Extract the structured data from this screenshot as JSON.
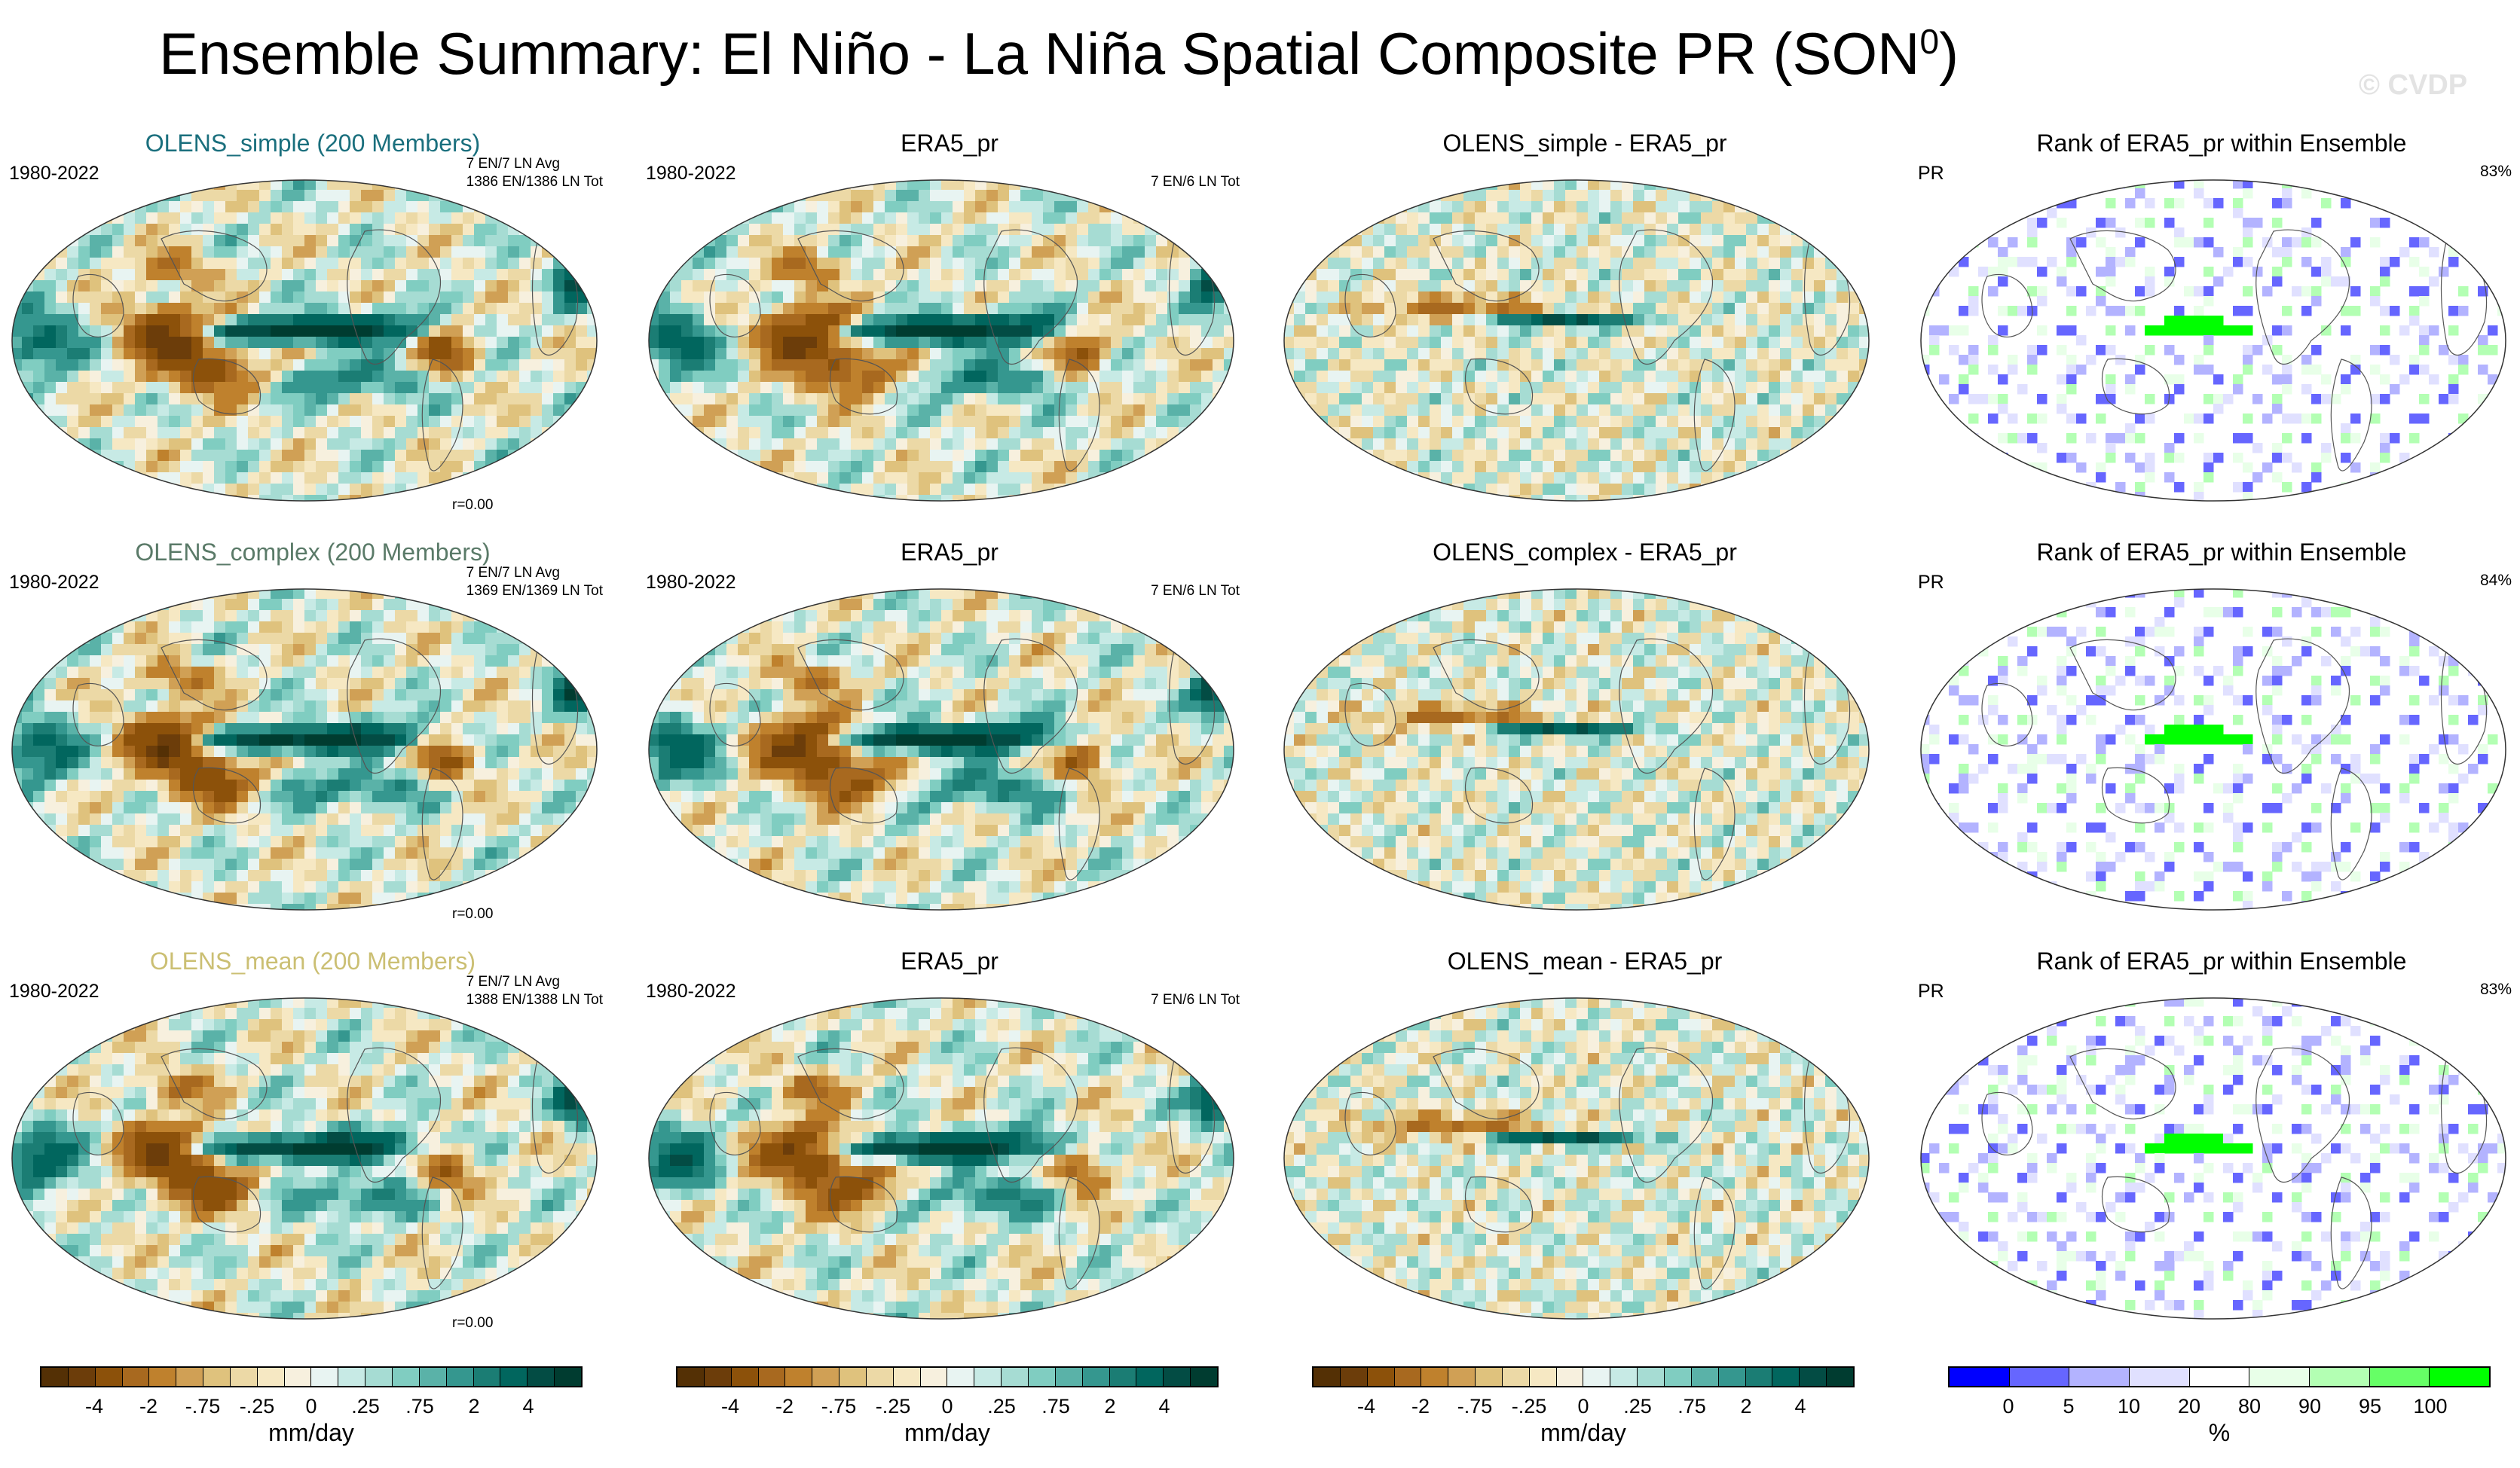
{
  "figure": {
    "title_main": "Ensemble Summary: El Niño - La Niña Spatial Composite PR (SON",
    "title_sup": "0",
    "title_close": ")",
    "copyright": "© CVDP"
  },
  "colors": {
    "brbg": [
      "#543005",
      "#6c3d0a",
      "#8c510a",
      "#a8691f",
      "#bf812d",
      "#d0a055",
      "#dfc27d",
      "#ecd9a6",
      "#f6e8c3",
      "#f7f0de",
      "#e8f4f2",
      "#c7eae5",
      "#a6dcd3",
      "#80cdc1",
      "#5ab2a8",
      "#35978f",
      "#1b7d74",
      "#01665e",
      "#034c44",
      "#003c30"
    ],
    "rank": [
      "#0000ff",
      "#6666ff",
      "#b3b3ff",
      "#e0e0ff",
      "#ffffff",
      "#e8ffe8",
      "#b3ffb3",
      "#66ff66",
      "#00ff00"
    ],
    "title_simple": "#1a6f7d",
    "title_complex": "#5a7a68",
    "title_mean": "#cbbf73"
  },
  "rows": [
    {
      "ens": {
        "title": "OLENS_simple (200 Members)",
        "years": "1980-2022",
        "info1": "7 EN/7 LN Avg",
        "info2": "1386 EN/1386 LN Tot",
        "r": "r=0.00"
      },
      "obs": {
        "title": "ERA5_pr",
        "years": "1980-2022",
        "info": "7 EN/6 LN Tot"
      },
      "diff": {
        "title": "OLENS_simple - ERA5_pr"
      },
      "rank": {
        "title": "Rank of ERA5_pr within Ensemble",
        "label": "PR",
        "pct": "83%"
      }
    },
    {
      "ens": {
        "title": "OLENS_complex (200 Members)",
        "years": "1980-2022",
        "info1": "7 EN/7 LN Avg",
        "info2": "1369 EN/1369 LN Tot",
        "r": "r=0.00"
      },
      "obs": {
        "title": "ERA5_pr",
        "years": "1980-2022",
        "info": "7 EN/6 LN Tot"
      },
      "diff": {
        "title": "OLENS_complex - ERA5_pr"
      },
      "rank": {
        "title": "Rank of ERA5_pr within Ensemble",
        "label": "PR",
        "pct": "84%"
      }
    },
    {
      "ens": {
        "title": "OLENS_mean (200 Members)",
        "years": "1980-2022",
        "info1": "7 EN/7 LN Avg",
        "info2": "1388 EN/1388 LN Tot",
        "r": "r=0.00"
      },
      "obs": {
        "title": "ERA5_pr",
        "years": "1980-2022",
        "info": "7 EN/6 LN Tot"
      },
      "diff": {
        "title": "OLENS_mean - ERA5_pr"
      },
      "rank": {
        "title": "Rank of ERA5_pr within Ensemble",
        "label": "PR",
        "pct": "83%"
      }
    }
  ],
  "chart_data": [
    {
      "type": "heatmap",
      "name": "precip-composite-colorbar",
      "unit": "mm/day",
      "tick_labels": [
        "-4",
        "-2",
        "-.75",
        "-.25",
        "0",
        ".25",
        ".75",
        "2",
        "4"
      ],
      "tick_values": [
        -4,
        -2,
        -0.75,
        -0.25,
        0,
        0.25,
        0.75,
        2,
        4
      ],
      "levels": [
        -5,
        -4,
        -3,
        -2,
        -1.5,
        -1,
        -0.75,
        -0.5,
        -0.25,
        -0.1,
        0,
        0.1,
        0.25,
        0.5,
        0.75,
        1,
        1.5,
        2,
        3,
        4,
        5
      ]
    },
    {
      "type": "heatmap",
      "name": "rank-colorbar",
      "unit": "%",
      "tick_labels": [
        "0",
        "5",
        "10",
        "20",
        "80",
        "90",
        "95",
        "100"
      ],
      "tick_values": [
        0,
        5,
        10,
        20,
        80,
        90,
        95,
        100
      ],
      "levels": [
        0,
        5,
        10,
        20,
        80,
        90,
        95,
        100
      ]
    }
  ],
  "colorbars": [
    {
      "unit": "mm/day",
      "ticks": [
        "-4",
        "-2",
        "-.75",
        "-.25",
        "0",
        ".25",
        ".75",
        "2",
        "4"
      ]
    },
    {
      "unit": "mm/day",
      "ticks": [
        "-4",
        "-2",
        "-.75",
        "-.25",
        "0",
        ".25",
        ".75",
        "2",
        "4"
      ]
    },
    {
      "unit": "mm/day",
      "ticks": [
        "-4",
        "-2",
        "-.75",
        "-.25",
        "0",
        ".25",
        ".75",
        "2",
        "4"
      ]
    },
    {
      "unit": "%",
      "ticks": [
        "0",
        "5",
        "10",
        "20",
        "80",
        "90",
        "95",
        "100"
      ]
    }
  ]
}
